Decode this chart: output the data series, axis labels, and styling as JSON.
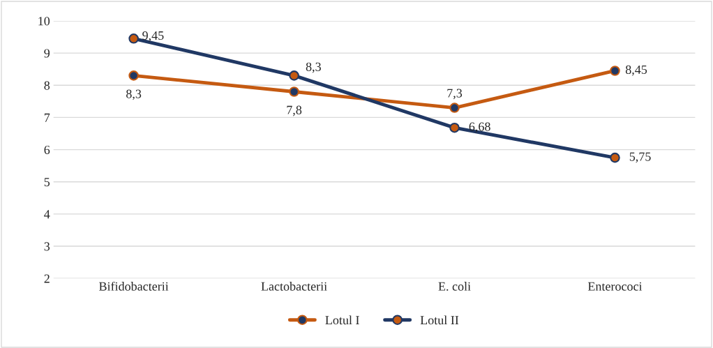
{
  "chart_data": {
    "type": "line",
    "categories": [
      "Bifidobacterii",
      "Lactobacterii",
      "E. coli",
      "Enterococi"
    ],
    "series": [
      {
        "name": "Lotul I",
        "color": "#c55a11",
        "values": [
          8.3,
          7.8,
          7.3,
          8.45
        ],
        "value_labels": [
          "8,3",
          "7,8",
          "7,3",
          "8,45"
        ]
      },
      {
        "name": "Lotul II",
        "color": "#203864",
        "values": [
          9.45,
          8.3,
          6.68,
          5.75
        ],
        "value_labels": [
          "9,45",
          "8,3",
          "6,68",
          "5,75"
        ]
      }
    ],
    "ylim": [
      2,
      10
    ],
    "yticks": [
      2,
      3,
      4,
      5,
      6,
      7,
      8,
      9,
      10
    ],
    "grid": "y",
    "legend": "bottom",
    "marker": "circle",
    "line_style": "solid"
  }
}
